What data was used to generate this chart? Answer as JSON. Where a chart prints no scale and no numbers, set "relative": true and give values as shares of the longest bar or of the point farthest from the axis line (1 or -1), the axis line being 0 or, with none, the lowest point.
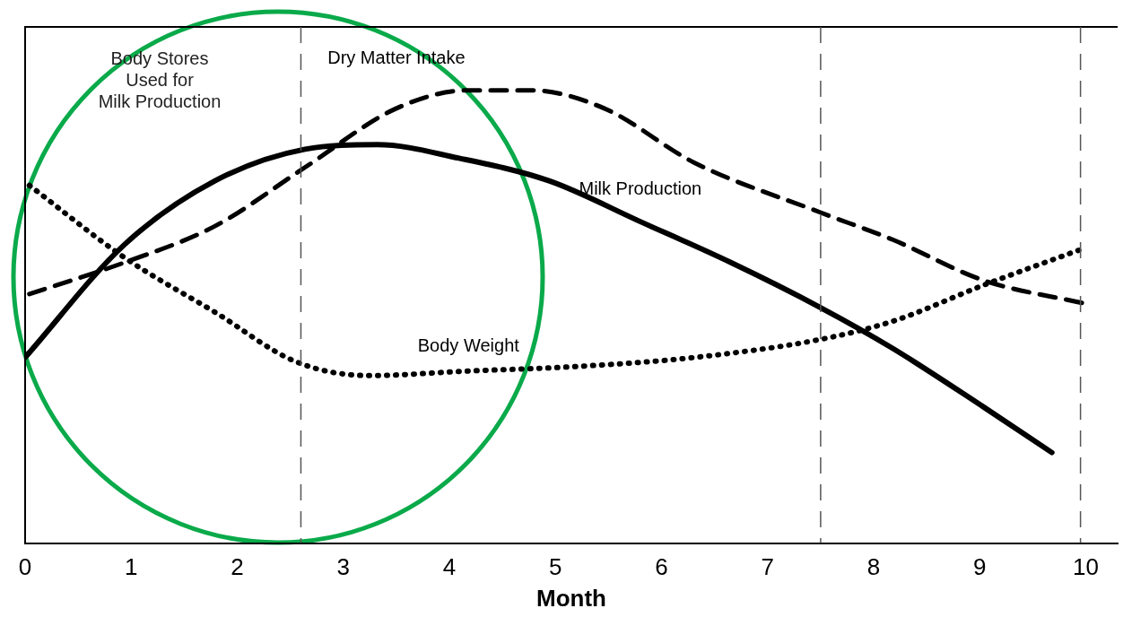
{
  "chart_data": {
    "type": "line",
    "relative": true,
    "xlabel": "Month",
    "xlim": [
      0,
      10.3
    ],
    "xticks": [
      0,
      1,
      2,
      3,
      4,
      5,
      6,
      7,
      8,
      9,
      10
    ],
    "grid": false,
    "legend": false,
    "marker": "none",
    "series": [
      {
        "name": "Milk Production",
        "color": "#000000",
        "line_style": "solid",
        "x": [
          0,
          0.94,
          1.79,
          2.64,
          3.32,
          4.09,
          4.94,
          5.8,
          6.65,
          7.5,
          8.18,
          9.04,
          9.68
        ],
        "values": [
          0.41,
          0.66,
          0.8,
          0.87,
          0.88,
          0.85,
          0.8,
          0.71,
          0.62,
          0.52,
          0.43,
          0.3,
          0.2
        ]
      },
      {
        "name": "Dry Matter Intake",
        "color": "#000000",
        "line_style": "dashed",
        "x": [
          0.04,
          0.94,
          1.79,
          2.64,
          3.5,
          4.18,
          4.77,
          5.46,
          6.31,
          7.5,
          8.18,
          9.04,
          9.97
        ],
        "values": [
          0.55,
          0.62,
          0.7,
          0.83,
          0.96,
          1.0,
          1.0,
          0.96,
          0.84,
          0.73,
          0.67,
          0.58,
          0.53
        ]
      },
      {
        "name": "Body Weight",
        "color": "#000000",
        "line_style": "dotted",
        "x": [
          0.04,
          0.94,
          1.79,
          2.56,
          3.24,
          4.18,
          5.2,
          6.31,
          7.5,
          8.18,
          9.04,
          9.97
        ],
        "values": [
          0.79,
          0.63,
          0.51,
          0.4,
          0.37,
          0.38,
          0.39,
          0.41,
          0.45,
          0.49,
          0.57,
          0.65
        ]
      }
    ],
    "ref_lines": [
      {
        "axis": "x",
        "value": 2.6,
        "line_style": "dashed",
        "color": "#555555"
      },
      {
        "axis": "x",
        "value": 7.5,
        "line_style": "dashed",
        "color": "#555555"
      },
      {
        "axis": "x",
        "value": 9.95,
        "line_style": "dashed",
        "color": "#555555"
      }
    ],
    "annotations": [
      "Body Stores\nUsed for\nMilk Production"
    ]
  }
}
